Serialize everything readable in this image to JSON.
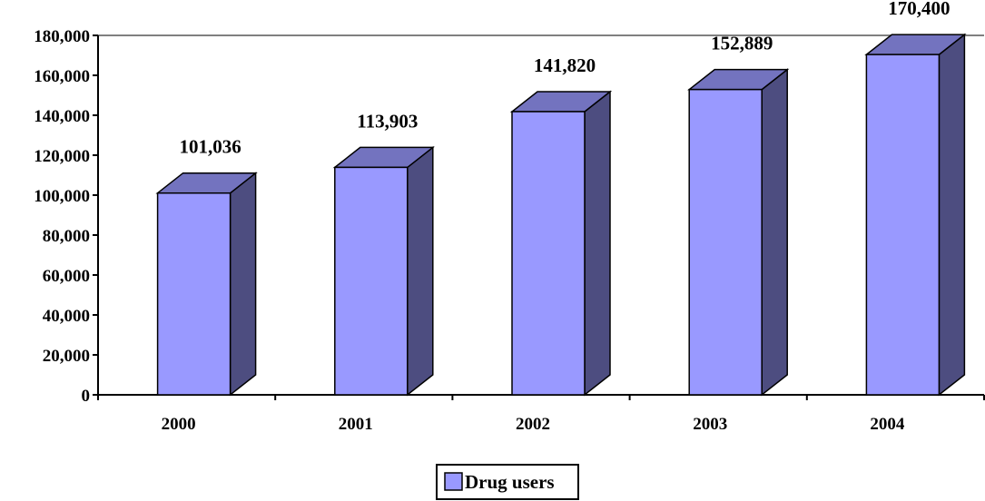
{
  "chart_data": {
    "type": "bar",
    "style": "3d-columns",
    "categories": [
      "2000",
      "2001",
      "2002",
      "2003",
      "2004"
    ],
    "series": [
      {
        "name": "Drug users",
        "values": [
          101036,
          113903,
          141820,
          152889,
          170400
        ]
      }
    ],
    "data_labels": [
      "101,036",
      "113,903",
      "141,820",
      "152,889",
      "170,400"
    ],
    "y_ticks": [
      "0",
      "20,000",
      "40,000",
      "60,000",
      "80,000",
      "100,000",
      "120,000",
      "140,000",
      "160,000",
      "180,000"
    ],
    "ylim": [
      0,
      180000
    ],
    "grid": false,
    "legend_position": "bottom",
    "colors": {
      "front": "#9999ff",
      "side": "#4d4d80",
      "top": "#7373bf",
      "outline": "#000000"
    }
  }
}
